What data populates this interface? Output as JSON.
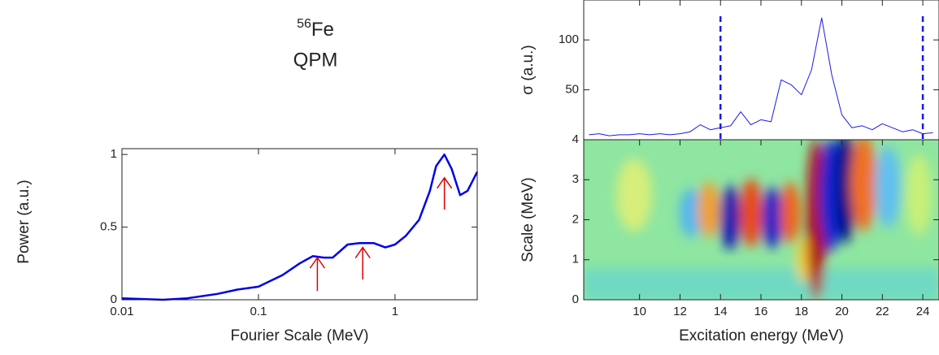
{
  "title_mass": "56",
  "title_element": "Fe",
  "subtitle": "QPM",
  "chart_data": [
    {
      "type": "line",
      "y_label": "Power (a.u.)",
      "x_label": "Fourier Scale (MeV)",
      "log_x": true,
      "x": [
        0.01,
        0.02,
        0.03,
        0.05,
        0.07,
        0.1,
        0.15,
        0.2,
        0.25,
        0.3,
        0.35,
        0.45,
        0.55,
        0.7,
        0.85,
        1.0,
        1.2,
        1.5,
        1.8,
        2.0,
        2.3,
        2.6,
        3.0,
        3.4,
        4.0
      ],
      "series": [
        {
          "color": "#0000e6",
          "values": [
            0.01,
            0.0,
            0.01,
            0.04,
            0.07,
            0.09,
            0.17,
            0.25,
            0.3,
            0.29,
            0.29,
            0.38,
            0.39,
            0.39,
            0.36,
            0.38,
            0.44,
            0.55,
            0.75,
            0.92,
            1.0,
            0.9,
            0.72,
            0.75,
            0.88
          ]
        }
      ],
      "xlim": [
        0.01,
        4
      ],
      "ylim": [
        0,
        1.04
      ],
      "xticks": [
        0.01,
        0.1,
        1
      ],
      "yticks": [
        0,
        0.5,
        1
      ],
      "arrow_color": "#e00000",
      "arrows": [
        {
          "x": 0.27,
          "from": 0.06,
          "to": 0.29
        },
        {
          "x": 0.58,
          "from": 0.14,
          "to": 0.36
        },
        {
          "x": 2.3,
          "from": 0.62,
          "to": 0.84
        }
      ]
    },
    {
      "type": "line",
      "y_label": "σ (a.u.)",
      "x": [
        7.5,
        8,
        8.5,
        9,
        9.5,
        10,
        10.5,
        11,
        11.5,
        12,
        12.5,
        13,
        13.5,
        14,
        14.5,
        15,
        15.5,
        16,
        16.5,
        17,
        17.5,
        18,
        18.5,
        19,
        19.5,
        20,
        20.5,
        21,
        21.5,
        22,
        22.5,
        23,
        23.5,
        24,
        24.5
      ],
      "series": [
        {
          "color": "#1a1ae6",
          "values": [
            5,
            6,
            4,
            5,
            5,
            6,
            5,
            6,
            5,
            6,
            8,
            15,
            10,
            12,
            14,
            28,
            15,
            20,
            18,
            60,
            55,
            45,
            70,
            122,
            65,
            25,
            12,
            14,
            10,
            16,
            12,
            8,
            10,
            6,
            7
          ]
        }
      ],
      "xlim": [
        7.24,
        24.8
      ],
      "ylim": [
        0,
        140
      ],
      "yticks": [
        50,
        100
      ],
      "markers": [
        14,
        24
      ],
      "marker_color": "#1a1ae6"
    },
    {
      "type": "heatmap",
      "y_label": "Scale (MeV)",
      "x_label": "Excitation energy (MeV)",
      "xlim": [
        7.24,
        24.8
      ],
      "ylim": [
        0,
        4
      ],
      "xticks": [
        10,
        12,
        14,
        16,
        18,
        20,
        22,
        24
      ],
      "yticks": [
        0,
        1,
        2,
        3,
        4
      ]
    }
  ]
}
